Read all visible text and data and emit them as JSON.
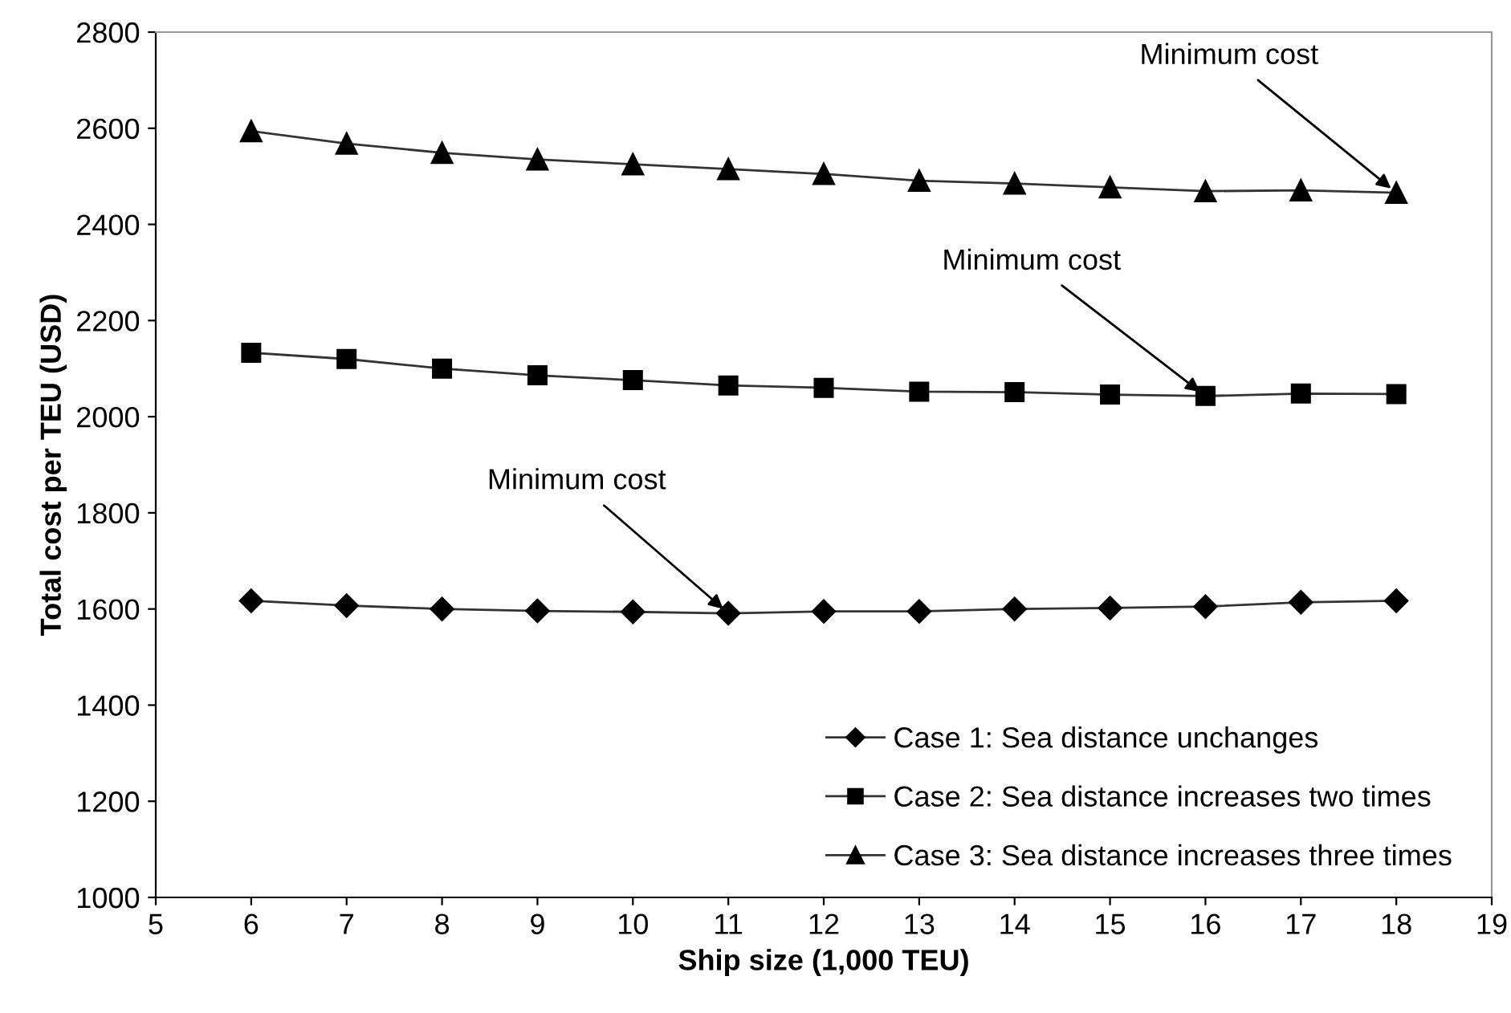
{
  "chart_data": {
    "type": "line",
    "xlabel": "Ship size (1,000 TEU)",
    "ylabel": "Total cost per TEU (USD)",
    "x": [
      6,
      7,
      8,
      9,
      10,
      11,
      12,
      13,
      14,
      15,
      16,
      17,
      18
    ],
    "series": [
      {
        "name": "Case 1: Sea distance unchanges",
        "color": "#000000",
        "marker": "diamond",
        "values": [
          1617,
          1607,
          1600,
          1596,
          1594,
          1591,
          1595,
          1595,
          1600,
          1602,
          1605,
          1614,
          1617
        ]
      },
      {
        "name": "Case 2: Sea distance increases two times",
        "color": "#000000",
        "marker": "square",
        "values": [
          2133,
          2120,
          2100,
          2086,
          2076,
          2065,
          2060,
          2052,
          2051,
          2046,
          2043,
          2048,
          2047
        ]
      },
      {
        "name": "Case 3: Sea distance increases three times",
        "color": "#000000",
        "marker": "triangle",
        "values": [
          2594,
          2568,
          2549,
          2535,
          2525,
          2515,
          2505,
          2491,
          2485,
          2477,
          2469,
          2471,
          2466
        ]
      }
    ],
    "xlim": [
      5,
      19
    ],
    "xticks": [
      5,
      6,
      7,
      8,
      9,
      10,
      11,
      12,
      13,
      14,
      15,
      16,
      17,
      18,
      19
    ],
    "ylim": [
      1000,
      2800
    ],
    "yticks": [
      1000,
      1200,
      1400,
      1600,
      1800,
      2000,
      2200,
      2400,
      2600,
      2800
    ],
    "grid": false,
    "legend": "bottom right",
    "line_style": "solid",
    "annotations": [
      {
        "text": "Minimum cost",
        "x": 18,
        "y": 2466
      },
      {
        "text": "Minimum cost",
        "x": 16,
        "y": 2043
      },
      {
        "text": "Minimum cost",
        "x": 11,
        "y": 1591
      }
    ]
  }
}
